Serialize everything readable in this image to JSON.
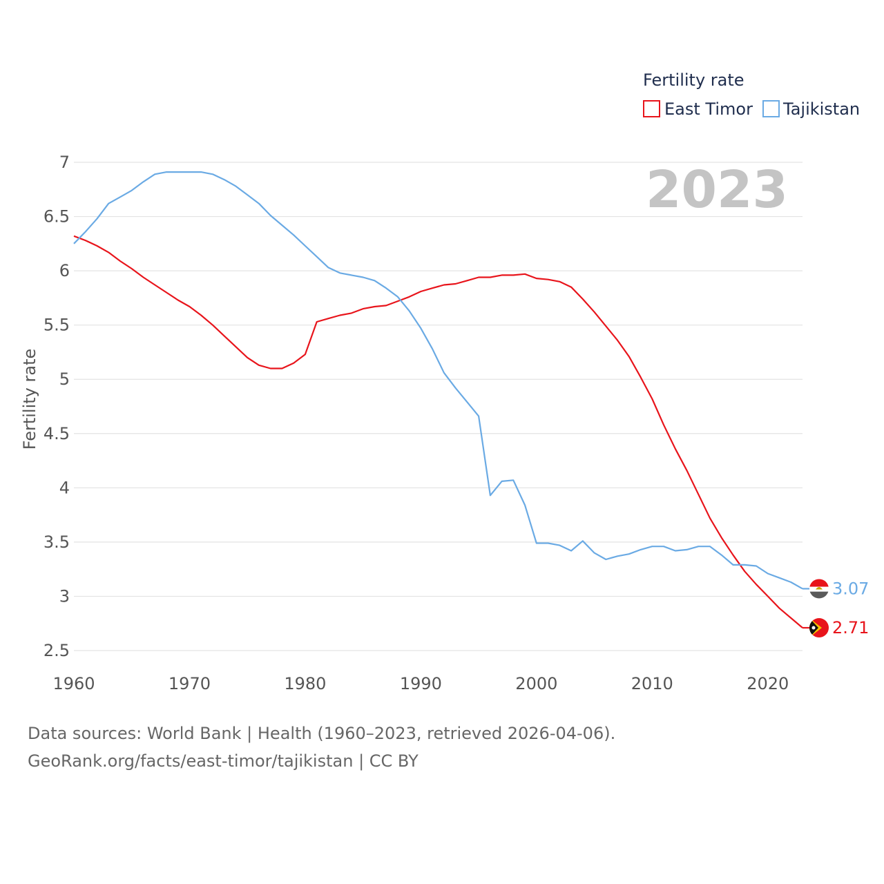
{
  "chart_data": {
    "type": "line",
    "title": "",
    "year_display": "2023",
    "legend": {
      "title": "Fertility rate",
      "placement": "top-right"
    },
    "xlabel": "",
    "ylabel": "Fertility rate",
    "xlim": [
      1960,
      2023
    ],
    "ylim": [
      2.5,
      7.0
    ],
    "x_ticks": [
      1960,
      1970,
      1980,
      1990,
      2000,
      2010,
      2020
    ],
    "y_ticks": [
      2.5,
      3,
      3.5,
      4,
      4.5,
      5,
      5.5,
      6,
      6.5,
      7
    ],
    "y_tick_labels": [
      "2.5",
      "3",
      "3.5",
      "4",
      "4.5",
      "5",
      "5.5",
      "6",
      "6.5",
      "7"
    ],
    "grid": true,
    "x": [
      1960,
      1961,
      1962,
      1963,
      1964,
      1965,
      1966,
      1967,
      1968,
      1969,
      1970,
      1971,
      1972,
      1973,
      1974,
      1975,
      1976,
      1977,
      1978,
      1979,
      1980,
      1981,
      1982,
      1983,
      1984,
      1985,
      1986,
      1987,
      1988,
      1989,
      1990,
      1991,
      1992,
      1993,
      1994,
      1995,
      1996,
      1997,
      1998,
      1999,
      2000,
      2001,
      2002,
      2003,
      2004,
      2005,
      2006,
      2007,
      2008,
      2009,
      2010,
      2011,
      2012,
      2013,
      2014,
      2015,
      2016,
      2017,
      2018,
      2019,
      2020,
      2021,
      2022,
      2023
    ],
    "series": [
      {
        "name": "East Timor",
        "color": "#e8141b",
        "end_label": "2.71",
        "flag": "east-timor-flag-icon",
        "values": [
          6.32,
          6.28,
          6.23,
          6.17,
          6.09,
          6.02,
          5.94,
          5.87,
          5.8,
          5.73,
          5.67,
          5.59,
          5.5,
          5.4,
          5.3,
          5.2,
          5.13,
          5.1,
          5.1,
          5.15,
          5.23,
          5.53,
          5.56,
          5.59,
          5.61,
          5.65,
          5.67,
          5.68,
          5.72,
          5.76,
          5.81,
          5.84,
          5.87,
          5.88,
          5.91,
          5.94,
          5.94,
          5.96,
          5.96,
          5.97,
          5.93,
          5.92,
          5.9,
          5.85,
          5.74,
          5.62,
          5.49,
          5.36,
          5.21,
          5.02,
          4.82,
          4.58,
          4.36,
          4.16,
          3.94,
          3.72,
          3.54,
          3.38,
          3.23,
          3.11,
          3.0,
          2.89,
          2.8,
          2.71
        ]
      },
      {
        "name": "Tajikistan",
        "color": "#6aaae4",
        "end_label": "3.07",
        "flag": "tajikistan-flag-icon",
        "values": [
          6.25,
          6.36,
          6.48,
          6.62,
          6.68,
          6.74,
          6.82,
          6.89,
          6.91,
          6.91,
          6.91,
          6.91,
          6.89,
          6.84,
          6.78,
          6.7,
          6.62,
          6.51,
          6.42,
          6.33,
          6.23,
          6.13,
          6.03,
          5.98,
          5.96,
          5.94,
          5.91,
          5.84,
          5.76,
          5.63,
          5.47,
          5.28,
          5.06,
          4.92,
          4.79,
          4.66,
          3.93,
          4.06,
          4.07,
          3.84,
          3.49,
          3.49,
          3.47,
          3.42,
          3.51,
          3.4,
          3.34,
          3.37,
          3.39,
          3.43,
          3.46,
          3.46,
          3.42,
          3.43,
          3.46,
          3.46,
          3.38,
          3.29,
          3.29,
          3.28,
          3.21,
          3.17,
          3.13,
          3.07
        ]
      }
    ]
  },
  "footer": {
    "line1": "Data sources: World Bank | Health (1960–2023, retrieved 2026-04-06).",
    "line2": "GeoRank.org/facts/east-timor/tajikistan | CC BY"
  }
}
